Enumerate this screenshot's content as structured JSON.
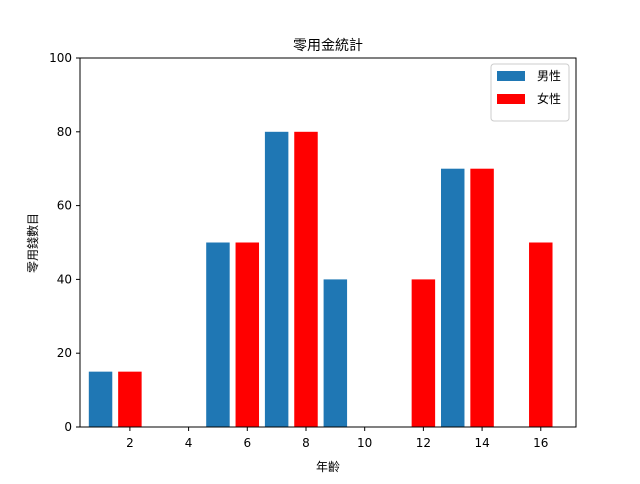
{
  "chart_data": {
    "type": "bar",
    "title": "零用金統計",
    "xlabel": "年齡",
    "ylabel": "零用錢數目",
    "xlim": [
      0.3,
      17.2
    ],
    "ylim": [
      0,
      100
    ],
    "xticks": [
      2,
      4,
      6,
      8,
      10,
      12,
      14,
      16
    ],
    "yticks": [
      0,
      20,
      40,
      60,
      80,
      100
    ],
    "grid": false,
    "legend_position": "top-right",
    "bar_width": 0.8,
    "series": [
      {
        "name": "男性",
        "color": "#1f77b4",
        "x": [
          1,
          3,
          5,
          7,
          9,
          11,
          13,
          15
        ],
        "values": [
          15,
          0,
          50,
          80,
          40,
          0,
          70,
          0
        ]
      },
      {
        "name": "女性",
        "color": "#ff0000",
        "x": [
          2,
          4,
          6,
          8,
          10,
          12,
          14,
          16
        ],
        "values": [
          15,
          0,
          50,
          80,
          0,
          40,
          70,
          50
        ]
      }
    ]
  }
}
